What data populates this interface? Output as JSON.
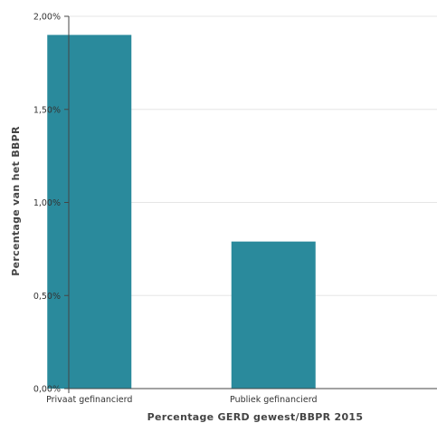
{
  "chart_data": {
    "type": "bar",
    "categories": [
      "Privaat gefinancierd",
      "Publiek gefinancierd"
    ],
    "values": [
      1.9,
      0.79
    ],
    "xlabel": "Percentage GERD gewest/BBPR 2015",
    "ylabel": "Percentage van het BBPR",
    "ylim": [
      0,
      2.0
    ],
    "yticks": [
      0,
      0.5,
      1.0,
      1.5,
      2.0
    ],
    "ytick_labels": [
      "0,00%",
      "0,50%",
      "1,00%",
      "1,50%",
      "2,00%"
    ],
    "grid": true,
    "legend": "none",
    "colors": {
      "bar": "#2a8a9c",
      "grid": "#e6e6e6",
      "axis": "#444444"
    }
  }
}
